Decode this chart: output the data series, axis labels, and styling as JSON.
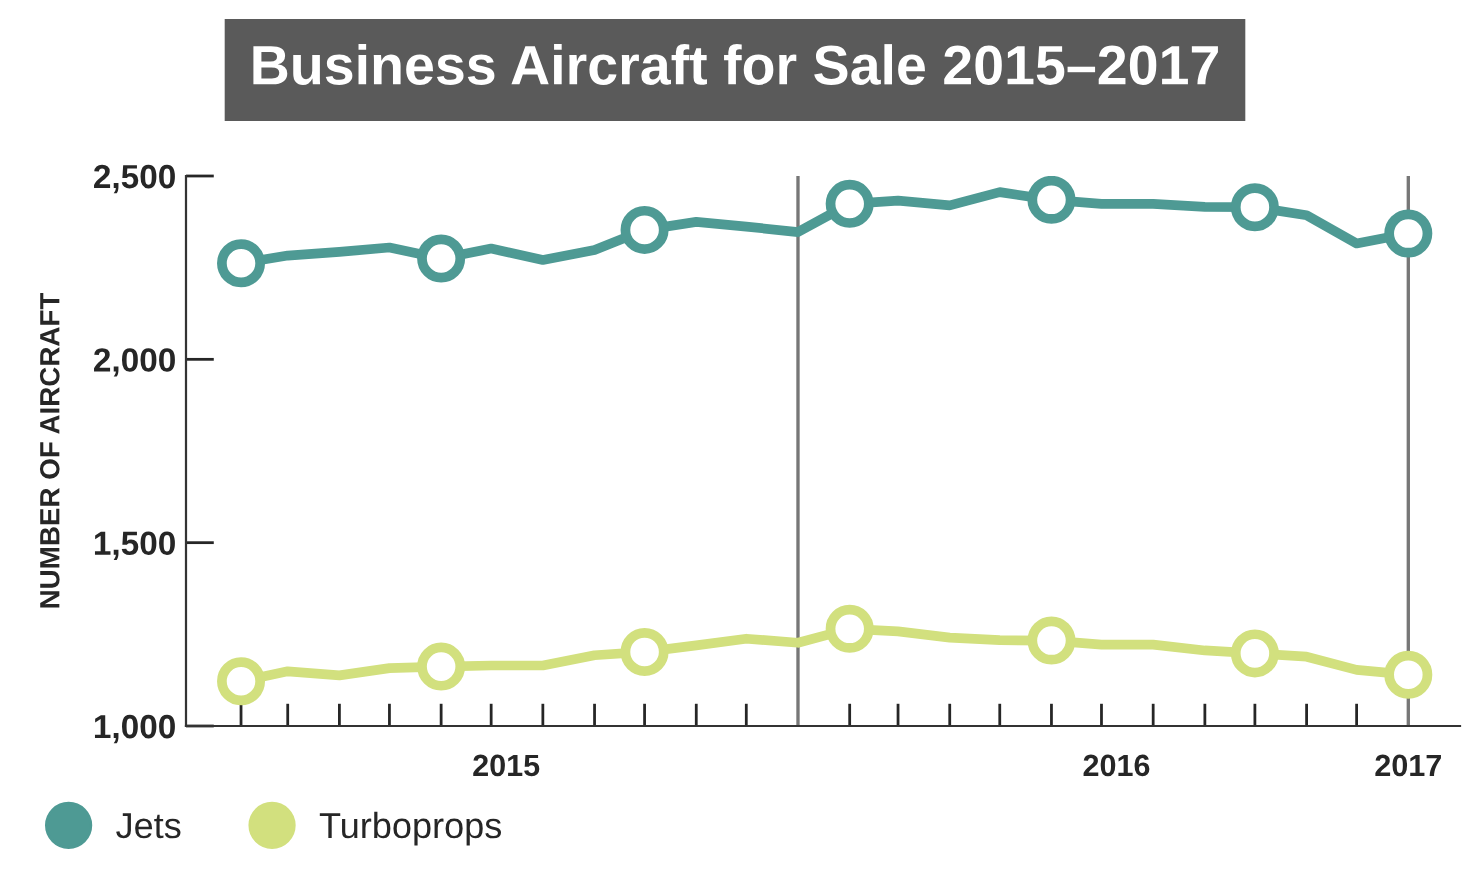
{
  "chart_data": {
    "type": "line",
    "title": "Business Aircraft for Sale 2015–2017",
    "ylabel": "NUMBER OF AIRCRAFT",
    "x": [
      "2015-02",
      "2015-03",
      "2015-04",
      "2015-05",
      "2015-06",
      "2015-07",
      "2015-08",
      "2015-09",
      "2015-10",
      "2015-11",
      "2015-12",
      "2016-01",
      "2016-02",
      "2016-03",
      "2016-04",
      "2016-05",
      "2016-06",
      "2016-07",
      "2016-08",
      "2016-09",
      "2016-10",
      "2016-11",
      "2016-12",
      "2017-01"
    ],
    "series": [
      {
        "name": "Jets",
        "color": "#4e9a94",
        "values": [
          2262,
          2283,
          2293,
          2305,
          2275,
          2302,
          2271,
          2298,
          2353,
          2375,
          2362,
          2347,
          2424,
          2433,
          2420,
          2456,
          2435,
          2424,
          2424,
          2416,
          2415,
          2393,
          2316,
          2343
        ]
      },
      {
        "name": "Turboprops",
        "color": "#d2e07e",
        "values": [
          1122,
          1149,
          1138,
          1158,
          1162,
          1165,
          1165,
          1193,
          1202,
          1220,
          1238,
          1227,
          1265,
          1258,
          1241,
          1234,
          1233,
          1222,
          1222,
          1206,
          1198,
          1189,
          1153,
          1140
        ]
      },
      {
        "type": "scatter",
        "color": "#4e9a94",
        "marker": "circle",
        "x": [
          "2015-02",
          "2015-06",
          "2015-10",
          "2016-02",
          "2016-06",
          "2016-10",
          "2017-01"
        ],
        "values": [
          2262,
          2275,
          2353,
          2424,
          2435,
          2415,
          2343
        ]
      },
      {
        "type": "scatter",
        "color": "#d2e07e",
        "marker": "circle",
        "x": [
          "2015-02",
          "2015-06",
          "2015-10",
          "2016-02",
          "2016-06",
          "2016-10",
          "2017-01"
        ],
        "values": [
          1122,
          1162,
          1202,
          1265,
          1233,
          1198,
          1140
        ]
      }
    ],
    "xlim": [
      "2014-12-30",
      "2017-02-01"
    ],
    "xticks": [
      {
        "value": "2015-02",
        "label": null
      },
      {
        "value": "2015-03",
        "label": null
      },
      {
        "value": "2015-04",
        "label": null
      },
      {
        "value": "2015-05",
        "label": null
      },
      {
        "value": "2015-06",
        "label": null
      },
      {
        "value": "2015-07",
        "label": null
      },
      {
        "value": "2015-08",
        "label": null
      },
      {
        "value": "2015-09",
        "label": null
      },
      {
        "value": "2015-10",
        "label": null
      },
      {
        "value": "2015-11",
        "label": null
      },
      {
        "value": "2015-12",
        "label": null
      },
      {
        "value": "2016-02",
        "label": null
      },
      {
        "value": "2016-03",
        "label": null
      },
      {
        "value": "2016-04",
        "label": null
      },
      {
        "value": "2016-05",
        "label": null
      },
      {
        "value": "2016-06",
        "label": null
      },
      {
        "value": "2016-07",
        "label": null
      },
      {
        "value": "2016-08",
        "label": null
      },
      {
        "value": "2016-09",
        "label": null
      },
      {
        "value": "2016-10",
        "label": null
      },
      {
        "value": "2016-11",
        "label": null
      },
      {
        "value": "2016-12",
        "label": null
      },
      {
        "value": "2015-07-10",
        "label": "2015"
      },
      {
        "value": "2016-07-10",
        "label": "2016"
      },
      {
        "value": "2017-01",
        "label": "2017"
      }
    ],
    "ylim": [
      1000,
      2500
    ],
    "yticks": [
      {
        "value": 1000,
        "label": "1,000"
      },
      {
        "value": 1500,
        "label": "1,500"
      },
      {
        "value": 2000,
        "label": "2,000"
      },
      {
        "value": 2500,
        "label": "2,500"
      }
    ],
    "ref_lines": [
      {
        "axis": "x",
        "value": "2016-01",
        "color": "#777777"
      },
      {
        "axis": "x",
        "value": "2017-01",
        "color": "#777777"
      }
    ],
    "grid": false,
    "legend": "bottom left"
  }
}
